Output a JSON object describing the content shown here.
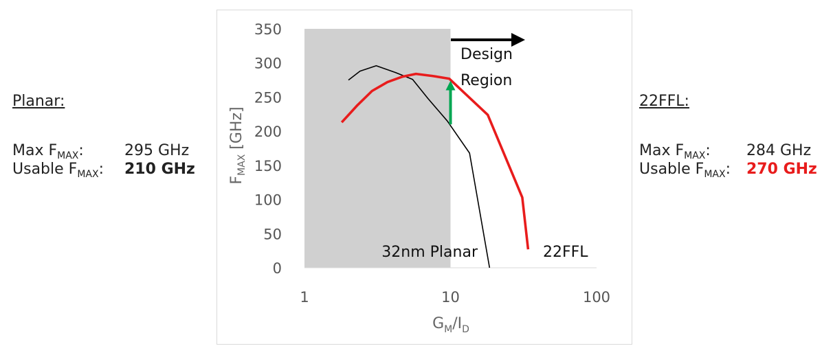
{
  "left_panel": {
    "heading": "Planar:",
    "max_label": "Max F",
    "max_sub": "MAX",
    "max_colon": ":",
    "max_value": "295 GHz",
    "usable_label": "Usable F",
    "usable_sub": "MAX",
    "usable_colon": ":",
    "usable_value": "210 GHz"
  },
  "right_panel": {
    "heading": "22FFL:",
    "max_label": "Max F",
    "max_sub": "MAX",
    "max_colon": ":",
    "max_value": "284 GHz",
    "usable_label": "Usable F",
    "usable_sub": "MAX",
    "usable_colon": ":",
    "usable_value": "270 GHz",
    "usable_value_color": "#e81c1c"
  },
  "chart_data": {
    "type": "line",
    "xscale": "log",
    "xlim": [
      1,
      100
    ],
    "ylim": [
      0,
      350
    ],
    "xticks": [
      "1",
      "10",
      "100"
    ],
    "yticks": [
      "0",
      "50",
      "100",
      "150",
      "200",
      "250",
      "300",
      "350"
    ],
    "xlabel": "G",
    "xlabel_sub1": "M",
    "xlabel_mid": "/I",
    "xlabel_sub2": "D",
    "ylabel": "F",
    "ylabel_sub": "MAX",
    "ylabel_tail": " [GHz]",
    "grid": false,
    "shaded_region": {
      "x": [
        1,
        10
      ],
      "color": "#d0d0d0"
    },
    "series": [
      {
        "name": "32nm Planar",
        "color": "#000000",
        "x": [
          2.0,
          2.4,
          3.1,
          4.2,
          5.5,
          7.0,
          9.5,
          13.5,
          18.5
        ],
        "y": [
          275,
          288,
          296,
          286,
          276,
          248,
          215,
          168,
          0
        ]
      },
      {
        "name": "22FFL",
        "color": "#e81c1c",
        "x": [
          1.8,
          2.3,
          2.9,
          3.7,
          4.7,
          5.8,
          7.5,
          9.8,
          18.0,
          31.0,
          34.0
        ],
        "y": [
          213,
          238,
          259,
          272,
          280,
          284,
          281,
          277,
          224,
          103,
          27
        ]
      }
    ],
    "annotations": {
      "design_region_line1": "Design",
      "design_region_line2": "Region",
      "arrow_color": "#00a651",
      "arrow_from": [
        10,
        210
      ],
      "arrow_to": [
        10,
        272
      ]
    },
    "colors": {
      "planar": "#000000",
      "ffl": "#e81c1c",
      "shade": "#d0d0d0",
      "arrow": "#00a651"
    }
  }
}
